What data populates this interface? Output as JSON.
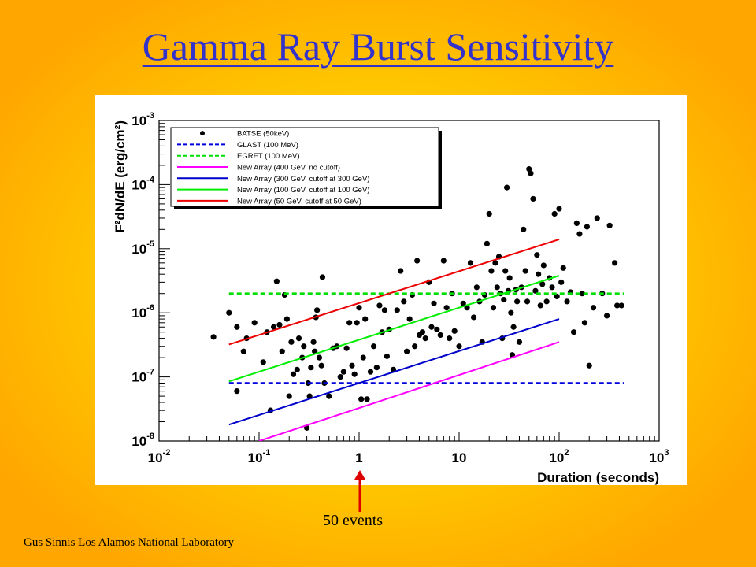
{
  "slide": {
    "title": "Gamma Ray Burst Sensitivity",
    "footer": "Gus Sinnis Los Alamos National Laboratory",
    "annotation": "50 events"
  },
  "colors": {
    "title": "#3333cc",
    "background_center": "#ffd400",
    "background_edge": "#ffa600",
    "arrow": "#dd0000"
  },
  "chart_data": {
    "type": "scatter",
    "xlabel": "Duration (seconds)",
    "ylabel": "F²dN/dE (erg/cm²)",
    "xscale": "log",
    "yscale": "log",
    "xlim": [
      0.01,
      1000
    ],
    "ylim": [
      1e-08,
      0.001
    ],
    "x_ticks": [
      {
        "label": "10",
        "sup": "-2"
      },
      {
        "label": "10",
        "sup": "-1"
      },
      {
        "label": "1",
        "sup": ""
      },
      {
        "label": "10",
        "sup": ""
      },
      {
        "label": "10",
        "sup": "2"
      },
      {
        "label": "10",
        "sup": "3"
      }
    ],
    "y_ticks": [
      {
        "label": "10",
        "sup": "-8"
      },
      {
        "label": "10",
        "sup": "-7"
      },
      {
        "label": "10",
        "sup": "-6"
      },
      {
        "label": "10",
        "sup": "-5"
      },
      {
        "label": "10",
        "sup": "-4"
      },
      {
        "label": "10",
        "sup": "-3"
      }
    ],
    "legend_position": "top-left",
    "series": [
      {
        "name": "BATSE (50keV)",
        "kind": "points",
        "color": "#000000",
        "points": [
          [
            0.035,
            4.2e-07
          ],
          [
            0.05,
            1e-06
          ],
          [
            0.06,
            6e-07
          ],
          [
            0.06,
            6e-08
          ],
          [
            0.07,
            2.5e-07
          ],
          [
            0.075,
            4e-07
          ],
          [
            0.09,
            7e-07
          ],
          [
            0.11,
            1.7e-07
          ],
          [
            0.12,
            5e-07
          ],
          [
            0.13,
            3e-08
          ],
          [
            0.14,
            6e-07
          ],
          [
            0.15,
            3.1e-06
          ],
          [
            0.16,
            6.5e-07
          ],
          [
            0.17,
            2.5e-07
          ],
          [
            0.18,
            1.9e-06
          ],
          [
            0.19,
            8e-07
          ],
          [
            0.2,
            5e-08
          ],
          [
            0.21,
            3.5e-07
          ],
          [
            0.22,
            1.1e-07
          ],
          [
            0.24,
            1.3e-07
          ],
          [
            0.25,
            4e-07
          ],
          [
            0.27,
            2e-07
          ],
          [
            0.28,
            3e-07
          ],
          [
            0.3,
            1.6e-08
          ],
          [
            0.31,
            8e-08
          ],
          [
            0.32,
            5e-08
          ],
          [
            0.33,
            1.4e-07
          ],
          [
            0.35,
            3.5e-07
          ],
          [
            0.36,
            2.5e-07
          ],
          [
            0.37,
            8.5e-07
          ],
          [
            0.38,
            1.1e-06
          ],
          [
            0.4,
            2e-07
          ],
          [
            0.42,
            1.5e-07
          ],
          [
            0.43,
            3.6e-06
          ],
          [
            0.45,
            8e-08
          ],
          [
            0.5,
            5e-08
          ],
          [
            0.55,
            2.8e-07
          ],
          [
            0.6,
            3e-07
          ],
          [
            0.65,
            1e-07
          ],
          [
            0.7,
            1.2e-07
          ],
          [
            0.75,
            2.8e-07
          ],
          [
            0.8,
            7e-07
          ],
          [
            0.85,
            1.5e-07
          ],
          [
            0.9,
            1.1e-07
          ],
          [
            0.95,
            7e-07
          ],
          [
            1.0,
            1.2e-06
          ],
          [
            1.05,
            4.5e-08
          ],
          [
            1.1,
            2e-07
          ],
          [
            1.15,
            8e-07
          ],
          [
            1.2,
            4.5e-08
          ],
          [
            1.3,
            1.2e-07
          ],
          [
            1.4,
            3e-07
          ],
          [
            1.5,
            1.4e-07
          ],
          [
            1.6,
            1.3e-06
          ],
          [
            1.7,
            5e-07
          ],
          [
            1.8,
            1.1e-06
          ],
          [
            1.9,
            2.1e-07
          ],
          [
            2.0,
            5.5e-07
          ],
          [
            2.2,
            1.3e-07
          ],
          [
            2.4,
            1.1e-06
          ],
          [
            2.6,
            4.5e-06
          ],
          [
            2.8,
            1.5e-06
          ],
          [
            3.0,
            2.5e-07
          ],
          [
            3.2,
            8e-07
          ],
          [
            3.4,
            1.9e-06
          ],
          [
            3.6,
            3e-07
          ],
          [
            3.8,
            6.5e-06
          ],
          [
            4.0,
            4.5e-07
          ],
          [
            4.3,
            5e-07
          ],
          [
            4.6,
            4e-07
          ],
          [
            5.0,
            3e-06
          ],
          [
            5.3,
            6e-07
          ],
          [
            5.6,
            1.4e-06
          ],
          [
            6.0,
            5.5e-07
          ],
          [
            6.5,
            4.5e-07
          ],
          [
            7.0,
            6.5e-06
          ],
          [
            7.5,
            1.2e-06
          ],
          [
            8.0,
            4e-07
          ],
          [
            8.5,
            2e-06
          ],
          [
            9.0,
            5.2e-07
          ],
          [
            10,
            3e-07
          ],
          [
            11,
            1.4e-06
          ],
          [
            12,
            1.2e-06
          ],
          [
            13,
            6e-06
          ],
          [
            14,
            8.5e-07
          ],
          [
            15,
            2.5e-06
          ],
          [
            16,
            1.5e-06
          ],
          [
            17,
            3.5e-07
          ],
          [
            18,
            1.9e-06
          ],
          [
            19,
            1.2e-05
          ],
          [
            20,
            3.5e-05
          ],
          [
            21,
            4.5e-06
          ],
          [
            22,
            1.2e-06
          ],
          [
            23,
            6e-06
          ],
          [
            24,
            2.5e-06
          ],
          [
            25,
            7.5e-06
          ],
          [
            26,
            2e-06
          ],
          [
            27,
            4e-07
          ],
          [
            28,
            1.6e-06
          ],
          [
            29,
            4.5e-06
          ],
          [
            30,
            9e-05
          ],
          [
            31,
            2.2e-06
          ],
          [
            32,
            3.5e-06
          ],
          [
            33,
            1e-06
          ],
          [
            34,
            2.2e-07
          ],
          [
            35,
            6e-07
          ],
          [
            37,
            2.3e-06
          ],
          [
            38,
            1.5e-06
          ],
          [
            40,
            3.5e-07
          ],
          [
            42,
            2.5e-06
          ],
          [
            44,
            2e-05
          ],
          [
            46,
            4.5e-06
          ],
          [
            48,
            1.5e-06
          ],
          [
            50,
            0.000175
          ],
          [
            52,
            0.00015
          ],
          [
            55,
            6e-05
          ],
          [
            58,
            2.2e-06
          ],
          [
            60,
            8e-06
          ],
          [
            62,
            4e-06
          ],
          [
            65,
            1.3e-06
          ],
          [
            68,
            2.8e-06
          ],
          [
            70,
            5.5e-06
          ],
          [
            75,
            1.5e-06
          ],
          [
            80,
            3.5e-06
          ],
          [
            85,
            2.5e-06
          ],
          [
            90,
            3.5e-05
          ],
          [
            95,
            1.8e-06
          ],
          [
            100,
            4.2e-05
          ],
          [
            105,
            3e-06
          ],
          [
            110,
            5e-06
          ],
          [
            120,
            1.5e-06
          ],
          [
            130,
            2.1e-06
          ],
          [
            140,
            5e-07
          ],
          [
            150,
            2.5e-05
          ],
          [
            160,
            1.7e-05
          ],
          [
            170,
            2e-06
          ],
          [
            180,
            7e-07
          ],
          [
            190,
            2.2e-05
          ],
          [
            200,
            1.5e-07
          ],
          [
            220,
            1.2e-06
          ],
          [
            240,
            3e-05
          ],
          [
            270,
            2e-06
          ],
          [
            300,
            9e-07
          ],
          [
            320,
            2.3e-05
          ],
          [
            360,
            6e-06
          ],
          [
            380,
            1.3e-06
          ],
          [
            420,
            1.3e-06
          ]
        ]
      },
      {
        "name": "GLAST (100 MeV)",
        "kind": "dashed",
        "color": "#0000dd",
        "x": [
          0.05,
          450
        ],
        "y": [
          8e-08,
          8e-08
        ]
      },
      {
        "name": "EGRET (100 MeV)",
        "kind": "dashed",
        "color": "#00dd00",
        "x": [
          0.05,
          450
        ],
        "y": [
          2e-06,
          2e-06
        ]
      },
      {
        "name": "New Array (400 GeV, no cutoff)",
        "kind": "line",
        "color": "#ff00ff",
        "x": [
          0.1,
          100
        ],
        "y": [
          1e-08,
          3.5e-07
        ]
      },
      {
        "name": "New Array (300 GeV, cutoff at 300 GeV)",
        "kind": "line",
        "color": "#0000cc",
        "x": [
          0.05,
          100
        ],
        "y": [
          1.8e-08,
          8e-07
        ]
      },
      {
        "name": "New Array (100 GeV, cutoff at 100 GeV)",
        "kind": "line",
        "color": "#00ee00",
        "x": [
          0.05,
          100
        ],
        "y": [
          8.5e-08,
          3.8e-06
        ]
      },
      {
        "name": "New Array (50 GeV, cutoff at 50 GeV)",
        "kind": "line",
        "color": "#ee0000",
        "x": [
          0.05,
          100
        ],
        "y": [
          3.2e-07,
          1.4e-05
        ]
      }
    ]
  }
}
